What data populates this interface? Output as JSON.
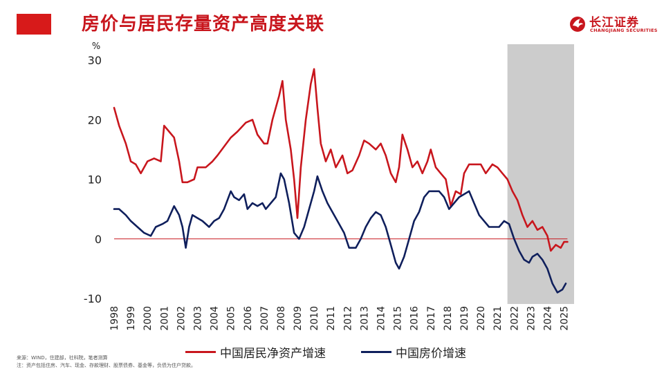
{
  "header": {
    "title": "房价与居民存量资产高度关联",
    "logo_cn": "长江证券",
    "logo_en": "CHANGJIANG SECURITIES"
  },
  "footer": {
    "source": "来源：WIND，住建部，社科院，笔者测算",
    "note": "注：资产包括住房、汽车、现金、存款理财、股票债券、基金等，负债为住户贷款。"
  },
  "colors": {
    "brand_red": "#c8161d",
    "asset_line": "#c8161d",
    "price_line": "#0f1f5c",
    "shade": "#cccccc",
    "zero_line": "#c8161d"
  },
  "chart_data": {
    "type": "line",
    "ylabel": "%",
    "ylim": [
      -10,
      30
    ],
    "yticks": [
      -10,
      0,
      10,
      20,
      30
    ],
    "xlim": [
      1998,
      2025.6
    ],
    "xticks": [
      "1998",
      "1999",
      "2000",
      "2001",
      "2002",
      "2003",
      "2004",
      "2005",
      "2006",
      "2007",
      "2008",
      "2009",
      "2010",
      "2011",
      "2012",
      "2013",
      "2014",
      "2015",
      "2016",
      "2017",
      "2018",
      "2019",
      "2020",
      "2021",
      "2022",
      "2023",
      "2024",
      "2025"
    ],
    "shaded_range": [
      2021.6,
      2025.6
    ],
    "grid": false,
    "legend_position": "bottom",
    "series": [
      {
        "name": "中国居民净资产增速",
        "color": "#c8161d",
        "points": [
          [
            1998.0,
            22
          ],
          [
            1998.3,
            19
          ],
          [
            1998.7,
            16
          ],
          [
            1999.0,
            13
          ],
          [
            1999.3,
            12.5
          ],
          [
            1999.6,
            11
          ],
          [
            2000.0,
            13
          ],
          [
            2000.4,
            13.5
          ],
          [
            2000.8,
            13
          ],
          [
            2001.0,
            19
          ],
          [
            2001.3,
            18
          ],
          [
            2001.6,
            17
          ],
          [
            2001.9,
            13
          ],
          [
            2002.1,
            9.5
          ],
          [
            2002.4,
            9.5
          ],
          [
            2002.8,
            10
          ],
          [
            2003.0,
            12
          ],
          [
            2003.5,
            12
          ],
          [
            2003.9,
            13
          ],
          [
            2004.2,
            14
          ],
          [
            2004.6,
            15.5
          ],
          [
            2005.0,
            17
          ],
          [
            2005.4,
            18
          ],
          [
            2005.9,
            19.5
          ],
          [
            2006.3,
            20
          ],
          [
            2006.6,
            17.5
          ],
          [
            2007.0,
            16
          ],
          [
            2007.2,
            16
          ],
          [
            2007.5,
            20
          ],
          [
            2007.9,
            24
          ],
          [
            2008.1,
            26.5
          ],
          [
            2008.3,
            20
          ],
          [
            2008.6,
            15
          ],
          [
            2008.8,
            10
          ],
          [
            2009.0,
            3.5
          ],
          [
            2009.2,
            12
          ],
          [
            2009.5,
            20
          ],
          [
            2009.8,
            26
          ],
          [
            2010.0,
            28.5
          ],
          [
            2010.2,
            22
          ],
          [
            2010.4,
            16
          ],
          [
            2010.7,
            13
          ],
          [
            2011.0,
            15
          ],
          [
            2011.3,
            12
          ],
          [
            2011.7,
            14
          ],
          [
            2012.0,
            11
          ],
          [
            2012.3,
            11.5
          ],
          [
            2012.7,
            14
          ],
          [
            2013.0,
            16.5
          ],
          [
            2013.3,
            16
          ],
          [
            2013.7,
            15
          ],
          [
            2014.0,
            16
          ],
          [
            2014.3,
            14
          ],
          [
            2014.6,
            11
          ],
          [
            2014.9,
            9.5
          ],
          [
            2015.1,
            12
          ],
          [
            2015.3,
            17.5
          ],
          [
            2015.6,
            15
          ],
          [
            2015.9,
            12
          ],
          [
            2016.2,
            13
          ],
          [
            2016.5,
            11
          ],
          [
            2016.8,
            13
          ],
          [
            2017.0,
            15
          ],
          [
            2017.3,
            12
          ],
          [
            2017.6,
            11
          ],
          [
            2017.9,
            10
          ],
          [
            2018.2,
            5.5
          ],
          [
            2018.5,
            8
          ],
          [
            2018.8,
            7.5
          ],
          [
            2019.0,
            11
          ],
          [
            2019.3,
            12.5
          ],
          [
            2019.6,
            12.5
          ],
          [
            2020.0,
            12.5
          ],
          [
            2020.3,
            11
          ],
          [
            2020.7,
            12.5
          ],
          [
            2021.0,
            12
          ],
          [
            2021.3,
            11
          ],
          [
            2021.6,
            10
          ],
          [
            2021.9,
            8
          ],
          [
            2022.2,
            6.5
          ],
          [
            2022.5,
            4
          ],
          [
            2022.8,
            2
          ],
          [
            2023.1,
            3
          ],
          [
            2023.4,
            1.5
          ],
          [
            2023.7,
            2
          ],
          [
            2024.0,
            0.5
          ],
          [
            2024.2,
            -2
          ],
          [
            2024.5,
            -1
          ],
          [
            2024.8,
            -1.5
          ],
          [
            2025.0,
            -0.5
          ],
          [
            2025.2,
            -0.5
          ]
        ]
      },
      {
        "name": "中国房价增速",
        "color": "#0f1f5c",
        "points": [
          [
            1998.0,
            5
          ],
          [
            1998.3,
            5
          ],
          [
            1998.7,
            4
          ],
          [
            1999.0,
            3
          ],
          [
            1999.4,
            2
          ],
          [
            1999.8,
            1
          ],
          [
            2000.2,
            0.5
          ],
          [
            2000.5,
            2
          ],
          [
            2000.9,
            2.5
          ],
          [
            2001.2,
            3
          ],
          [
            2001.6,
            5.5
          ],
          [
            2001.9,
            4
          ],
          [
            2002.1,
            2
          ],
          [
            2002.3,
            -1.5
          ],
          [
            2002.5,
            2
          ],
          [
            2002.7,
            4
          ],
          [
            2003.0,
            3.5
          ],
          [
            2003.3,
            3
          ],
          [
            2003.7,
            2
          ],
          [
            2004.0,
            3
          ],
          [
            2004.3,
            3.5
          ],
          [
            2004.6,
            5
          ],
          [
            2005.0,
            8
          ],
          [
            2005.2,
            7
          ],
          [
            2005.5,
            6.5
          ],
          [
            2005.8,
            7.5
          ],
          [
            2006.0,
            5
          ],
          [
            2006.3,
            6
          ],
          [
            2006.6,
            5.5
          ],
          [
            2006.9,
            6
          ],
          [
            2007.1,
            5
          ],
          [
            2007.4,
            6
          ],
          [
            2007.7,
            7
          ],
          [
            2008.0,
            11
          ],
          [
            2008.2,
            10
          ],
          [
            2008.5,
            6
          ],
          [
            2008.8,
            1
          ],
          [
            2009.1,
            0
          ],
          [
            2009.4,
            2
          ],
          [
            2009.7,
            5
          ],
          [
            2010.0,
            8
          ],
          [
            2010.2,
            10.5
          ],
          [
            2010.5,
            8
          ],
          [
            2010.8,
            6
          ],
          [
            2011.0,
            5
          ],
          [
            2011.4,
            3
          ],
          [
            2011.8,
            1
          ],
          [
            2012.1,
            -1.5
          ],
          [
            2012.5,
            -1.5
          ],
          [
            2012.8,
            0
          ],
          [
            2013.1,
            2
          ],
          [
            2013.4,
            3.5
          ],
          [
            2013.7,
            4.5
          ],
          [
            2014.0,
            4
          ],
          [
            2014.3,
            2
          ],
          [
            2014.6,
            -1
          ],
          [
            2014.9,
            -4
          ],
          [
            2015.1,
            -5
          ],
          [
            2015.4,
            -3
          ],
          [
            2015.7,
            0
          ],
          [
            2016.0,
            3
          ],
          [
            2016.3,
            4.5
          ],
          [
            2016.6,
            7
          ],
          [
            2016.9,
            8
          ],
          [
            2017.2,
            8
          ],
          [
            2017.5,
            8
          ],
          [
            2017.8,
            7
          ],
          [
            2018.1,
            5
          ],
          [
            2018.4,
            6
          ],
          [
            2018.7,
            7
          ],
          [
            2019.0,
            7.5
          ],
          [
            2019.3,
            8
          ],
          [
            2019.6,
            6
          ],
          [
            2019.9,
            4
          ],
          [
            2020.2,
            3
          ],
          [
            2020.5,
            2
          ],
          [
            2020.8,
            2
          ],
          [
            2021.1,
            2
          ],
          [
            2021.4,
            3
          ],
          [
            2021.7,
            2.5
          ],
          [
            2022.0,
            0
          ],
          [
            2022.3,
            -2
          ],
          [
            2022.6,
            -3.5
          ],
          [
            2022.9,
            -4
          ],
          [
            2023.1,
            -3
          ],
          [
            2023.4,
            -2.5
          ],
          [
            2023.7,
            -3.5
          ],
          [
            2024.0,
            -5
          ],
          [
            2024.3,
            -7.5
          ],
          [
            2024.6,
            -9
          ],
          [
            2024.9,
            -8.5
          ],
          [
            2025.1,
            -7.5
          ]
        ]
      }
    ]
  }
}
